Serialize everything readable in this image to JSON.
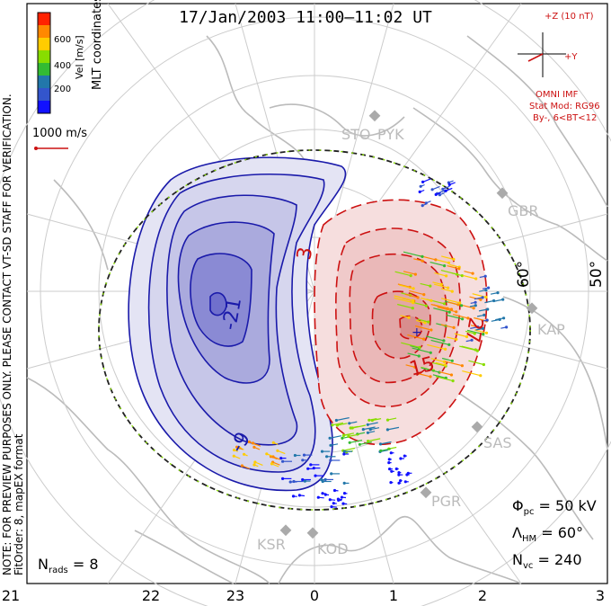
{
  "header": {
    "title": "17/Jan/2003 11:00–11:02 UT"
  },
  "color_scale": {
    "label": "Vel [m/s]",
    "ticks": [
      "600",
      "400",
      "200"
    ],
    "colors": [
      "#ff2200",
      "#ff8800",
      "#ffcc00",
      "#88dd00",
      "#33bb33",
      "#2277aa",
      "#3355cc",
      "#1111ff"
    ]
  },
  "coords_label": "MLT coordinates",
  "reference_vector": {
    "label": "1000 m/s"
  },
  "preview_note": "NOTE: FOR PREVIEW PURPOSES ONLY. PLEASE CONTACT VT-SD STAFF FOR VERIFICATION.",
  "fit_order_note": "FitOrder: 8, mapEX format",
  "imf": {
    "z_label": "+Z (10 nT)",
    "y_label": "+Y",
    "source": "OMNI IMF",
    "model": "Stat Mod: RG96",
    "condition": "By-, 6<BT<12"
  },
  "latitude_labels": [
    "60°",
    "50°"
  ],
  "stations": [
    "STO",
    "PYK",
    "GBR",
    "KAP",
    "SAS",
    "PGR",
    "KSR",
    "KOD"
  ],
  "contour_labels": {
    "negative": [
      "-21",
      "-9"
    ],
    "positive": [
      "3",
      "15",
      "27"
    ]
  },
  "stats": {
    "phi_pc": "Φpc = 50 kV",
    "lambda_hm": "ΛHM = 60°",
    "n_vc": "Nvc = 240",
    "n_rads": "Nrads = 8"
  },
  "mlt_axis": [
    "21",
    "22",
    "23",
    "0",
    "1",
    "2",
    "3"
  ],
  "colors": {
    "negative_contour": "#1a1aaa",
    "positive_contour": "#cc1111",
    "map_gray": "#bbbbbb",
    "hmb": "#222222"
  }
}
